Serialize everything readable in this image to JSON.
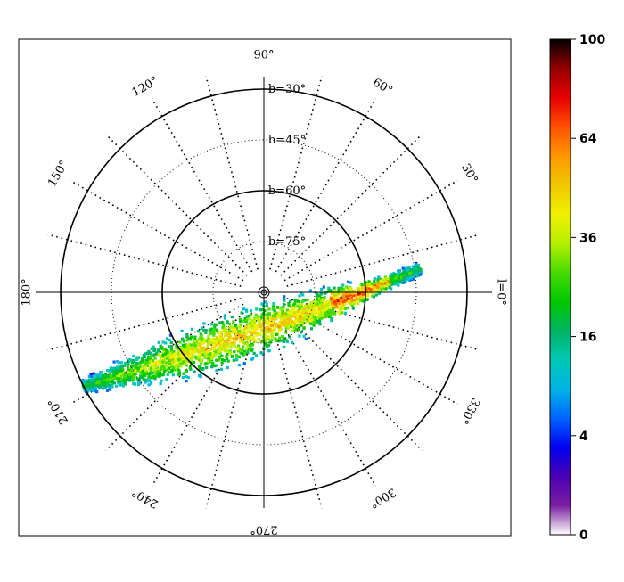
{
  "chart_data": {
    "type": "heatmap",
    "projection": "polar (galactic l, b)",
    "longitude_labels": [
      {
        "text": "90°",
        "l": 90
      },
      {
        "text": "120°",
        "l": 120
      },
      {
        "text": "150°",
        "l": 150
      },
      {
        "text": "180°",
        "l": 180
      },
      {
        "text": "210°",
        "l": 210
      },
      {
        "text": "240°",
        "l": 240
      },
      {
        "text": "270°",
        "l": 270
      },
      {
        "text": "300°",
        "l": 300
      },
      {
        "text": "330°",
        "l": 330
      },
      {
        "text": "l=0°",
        "l": 0
      },
      {
        "text": "30°",
        "l": 30
      },
      {
        "text": "60°",
        "l": 60
      }
    ],
    "latitude_labels": [
      {
        "text": "b=30°",
        "b": 30
      },
      {
        "text": "b=45°",
        "b": 45
      },
      {
        "text": "b=60°",
        "b": 60
      },
      {
        "text": "b=75°",
        "b": 75
      }
    ],
    "latitude_circles": {
      "solid": [
        30,
        60
      ],
      "dotted": [
        45,
        75
      ]
    },
    "meridian_step_deg": 15,
    "colorbar": {
      "tick_labels": [
        "0",
        "4",
        "16",
        "36",
        "64",
        "100"
      ],
      "tick_values": [
        0,
        4,
        16,
        36,
        64,
        100
      ],
      "range": [
        0,
        100
      ],
      "scale": "sqrt",
      "colors": [
        "#ffffff",
        "#7a1fa0",
        "#4b00b4",
        "#0000f0",
        "#0064ff",
        "#00b4e6",
        "#00c8b4",
        "#00b464",
        "#00c800",
        "#46dc00",
        "#b4f000",
        "#f0f000",
        "#f0c800",
        "#ff9600",
        "#ff5000",
        "#e60000",
        "#960000",
        "#000000"
      ]
    },
    "density_band": {
      "description": "elongated stream of star counts from l≈210° through the pole region toward l≈0–330°",
      "peak_value": 85,
      "peak_location_l": 340,
      "peak_location_b": 62
    }
  }
}
